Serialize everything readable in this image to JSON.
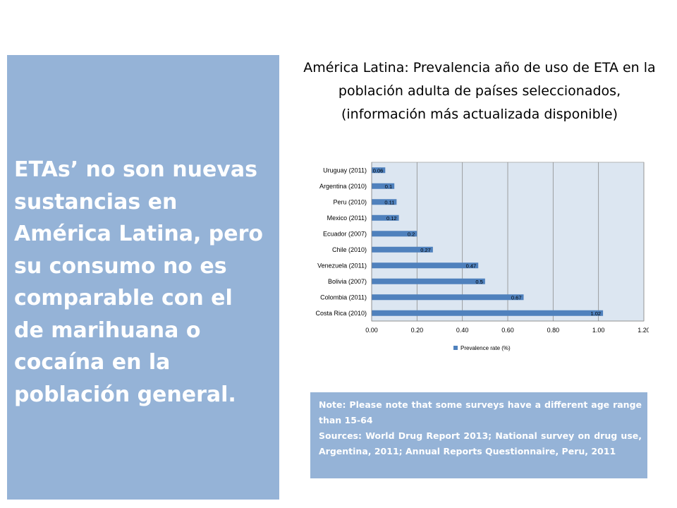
{
  "left_panel": {
    "text": "ETAs’ no son nuevas sustancias en América Latina, pero su consumo no es comparable con el de marihuana o cocaína en la población general."
  },
  "chart_title": "América Latina: Prevalencia año de uso de ETA en la población adulta de países seleccionados, (información más actualizada disponible)",
  "colors": {
    "panel": "#95b3d7",
    "bar": "#4f81bd",
    "plot_bg": "#dce6f1"
  },
  "chart_data": {
    "type": "bar",
    "orientation": "horizontal",
    "categories": [
      "Uruguay (2011)",
      "Argentina (2010)",
      "Peru (2010)",
      "Mexico (2011)",
      "Ecuador (2007)",
      "Chile (2010)",
      "Venezuela (2011)",
      "Bolivia (2007)",
      "Colombia (2011)",
      "Costa Rica (2010)"
    ],
    "series": [
      {
        "name": "Prevalence rate (%)",
        "values": [
          0.06,
          0.1,
          0.11,
          0.12,
          0.2,
          0.27,
          0.47,
          0.5,
          0.67,
          1.02
        ]
      }
    ],
    "value_labels": [
      "0.06",
      "0.1",
      "0.11",
      "0.12",
      "0.2",
      "0.27",
      "0.47",
      "0.5",
      "0.67",
      "1.02"
    ],
    "xticks": [
      "0.00",
      "0.20",
      "0.40",
      "0.60",
      "0.80",
      "1.00",
      "1.20"
    ],
    "xlim": [
      0,
      1.2
    ],
    "grid": true,
    "legend": "bottom"
  },
  "note": {
    "line1": "Note: Please note that some surveys have a different age range than 15-64",
    "line2": "Sources: World Drug Report 2013; National survey on drug use, Argentina, 2011; Annual Reports Questionnaire, Peru, 2011"
  }
}
